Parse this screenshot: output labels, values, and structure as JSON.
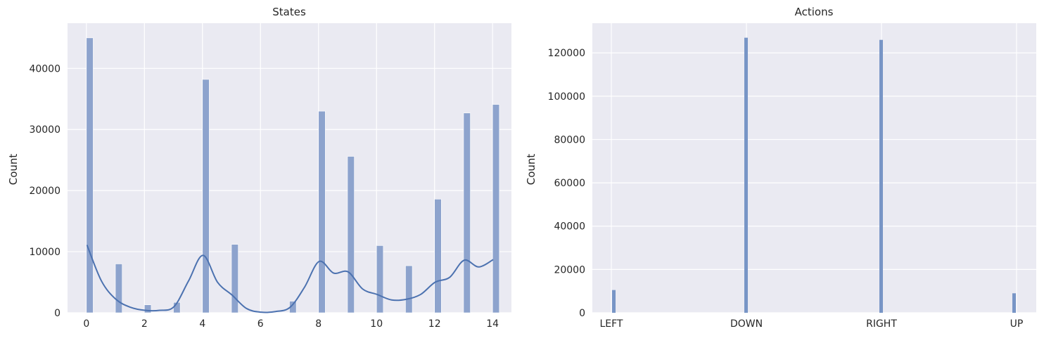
{
  "colors": {
    "background": "#ffffff",
    "plot_background": "#EAEAF2",
    "grid": "#ffffff",
    "bar_states": "#8DA3CD",
    "bar_actions": "#7895C6",
    "kde_line": "#4C72B0",
    "text": "#262626"
  },
  "chart_data": [
    {
      "type": "bar",
      "title": "States",
      "xlabel": "",
      "ylabel": "Count",
      "x": [
        0,
        1,
        2,
        3,
        4,
        5,
        6,
        7,
        8,
        9,
        10,
        11,
        12,
        13,
        14
      ],
      "values": [
        45000,
        8000,
        1300,
        1700,
        38200,
        11200,
        0,
        1900,
        33000,
        25600,
        11000,
        7700,
        18600,
        32700,
        34100
      ],
      "kde": {
        "x": [
          0,
          0.5,
          1,
          1.5,
          2,
          2.5,
          3,
          3.5,
          4,
          4.5,
          5,
          5.5,
          6,
          6.5,
          7,
          7.5,
          8,
          8.5,
          9,
          9.5,
          10,
          10.5,
          11,
          11.5,
          12,
          12.5,
          13,
          13.5,
          14
        ],
        "y": [
          11100,
          5200,
          2200,
          900,
          400,
          400,
          1000,
          5200,
          9400,
          5000,
          2900,
          700,
          100,
          200,
          900,
          4200,
          8400,
          6500,
          6700,
          3900,
          3000,
          2100,
          2200,
          3000,
          5000,
          5800,
          8600,
          7500,
          8700
        ]
      },
      "xticks": [
        0,
        2,
        4,
        6,
        8,
        10,
        12,
        14
      ],
      "yticks": [
        0,
        10000,
        20000,
        30000,
        40000
      ],
      "xlim": [
        -0.65,
        14.65
      ],
      "ylim": [
        0,
        47400
      ],
      "grid": true,
      "legend": null
    },
    {
      "type": "bar",
      "title": "Actions",
      "xlabel": "",
      "ylabel": "Count",
      "categories": [
        "LEFT",
        "DOWN",
        "RIGHT",
        "UP"
      ],
      "values": [
        10500,
        127000,
        126000,
        9000
      ],
      "yticks": [
        0,
        20000,
        40000,
        60000,
        80000,
        100000,
        120000
      ],
      "ylim": [
        0,
        133700
      ],
      "grid": true,
      "legend": null
    }
  ]
}
